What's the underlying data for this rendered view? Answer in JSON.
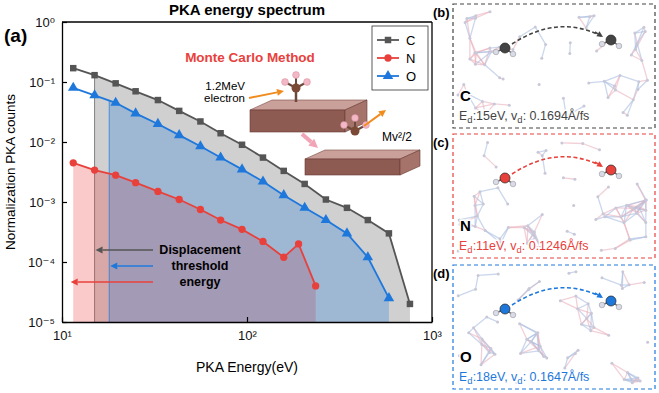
{
  "chart_data": {
    "type": "line",
    "panel_label": "(a)",
    "title": "PKA energy spectrum",
    "x_label": "PKA Energy(eV)",
    "y_label": "Normalization PKA counts",
    "log": true,
    "grid": false,
    "legend": "upper right",
    "xlim": [
      10,
      1000
    ],
    "ylim": [
      1e-05,
      1
    ],
    "xticks": [
      {
        "value": 10,
        "label": "10¹"
      },
      {
        "value": 100,
        "label": "10²"
      },
      {
        "value": 1000,
        "label": "10³"
      }
    ],
    "yticks": [
      {
        "value": 1,
        "label": "10⁰"
      },
      {
        "value": 0.1,
        "label": "10⁻¹"
      },
      {
        "value": 0.01,
        "label": "10⁻²"
      },
      {
        "value": 0.001,
        "label": "10⁻³"
      },
      {
        "value": 0.0001,
        "label": "10⁻⁴"
      },
      {
        "value": 1e-05,
        "label": "10⁻⁵"
      }
    ],
    "series": [
      {
        "name": "C",
        "color": "#555555",
        "marker": "square",
        "threshold": 15,
        "x": [
          11.5,
          15,
          19.5,
          25,
          33,
          43,
          56,
          72,
          94,
          122,
          158,
          205,
          267,
          347,
          450,
          585,
          760
        ],
        "values": [
          0.17,
          0.13,
          0.095,
          0.07,
          0.05,
          0.033,
          0.022,
          0.014,
          0.009,
          0.0055,
          0.0033,
          0.002,
          0.0011,
          0.0008,
          0.0005,
          0.0003,
          2e-05
        ]
      },
      {
        "name": "N",
        "color": "#e8413c",
        "marker": "circle",
        "threshold": 11,
        "x": [
          11.5,
          15,
          19.5,
          25,
          33,
          43,
          56,
          72,
          94,
          122,
          158,
          190,
          235
        ],
        "values": [
          0.0045,
          0.0034,
          0.0028,
          0.0021,
          0.0015,
          0.0011,
          0.00075,
          0.0005,
          0.00035,
          0.00022,
          0.00012,
          0.0002,
          4e-05
        ]
      },
      {
        "name": "O",
        "color": "#1e78dc",
        "marker": "triangle",
        "threshold": 18,
        "x": [
          11.5,
          15,
          19.5,
          25,
          33,
          43,
          56,
          72,
          94,
          122,
          158,
          205,
          267,
          347,
          450,
          585
        ],
        "values": [
          0.08,
          0.06,
          0.045,
          0.03,
          0.02,
          0.013,
          0.0085,
          0.0055,
          0.0035,
          0.0022,
          0.0013,
          0.0008,
          0.0005,
          0.0003,
          0.00012,
          2.5e-05
        ]
      }
    ],
    "annotations": {
      "method": "Monte Carlo Method",
      "beam": [
        "1.2MeV",
        "electron"
      ],
      "recoil": "Mv²/2",
      "threshold": [
        "Displacement",
        "threshold",
        "energy"
      ]
    }
  },
  "panels": [
    {
      "label": "(b)",
      "element": "C",
      "color": "#444444",
      "segments": [
        {
          "text": "E"
        },
        {
          "text": "d",
          "sub": true
        },
        {
          "text": ":15eV, v"
        },
        {
          "text": "d",
          "sub": true
        },
        {
          "text": ": 0.1694Å/fs"
        }
      ]
    },
    {
      "label": "(c)",
      "element": "N",
      "color": "#e8413c",
      "segments": [
        {
          "text": "E"
        },
        {
          "text": "d",
          "sub": true
        },
        {
          "text": ":11eV, v"
        },
        {
          "text": "d",
          "sub": true
        },
        {
          "text": ": 0.1246Å/fs"
        }
      ]
    },
    {
      "label": "(d)",
      "element": "O",
      "color": "#1e78dc",
      "segments": [
        {
          "text": "E"
        },
        {
          "text": "d",
          "sub": true
        },
        {
          "text": ":18eV, v"
        },
        {
          "text": "d",
          "sub": true
        },
        {
          "text": ": 0.1647Å/fs"
        }
      ]
    }
  ]
}
